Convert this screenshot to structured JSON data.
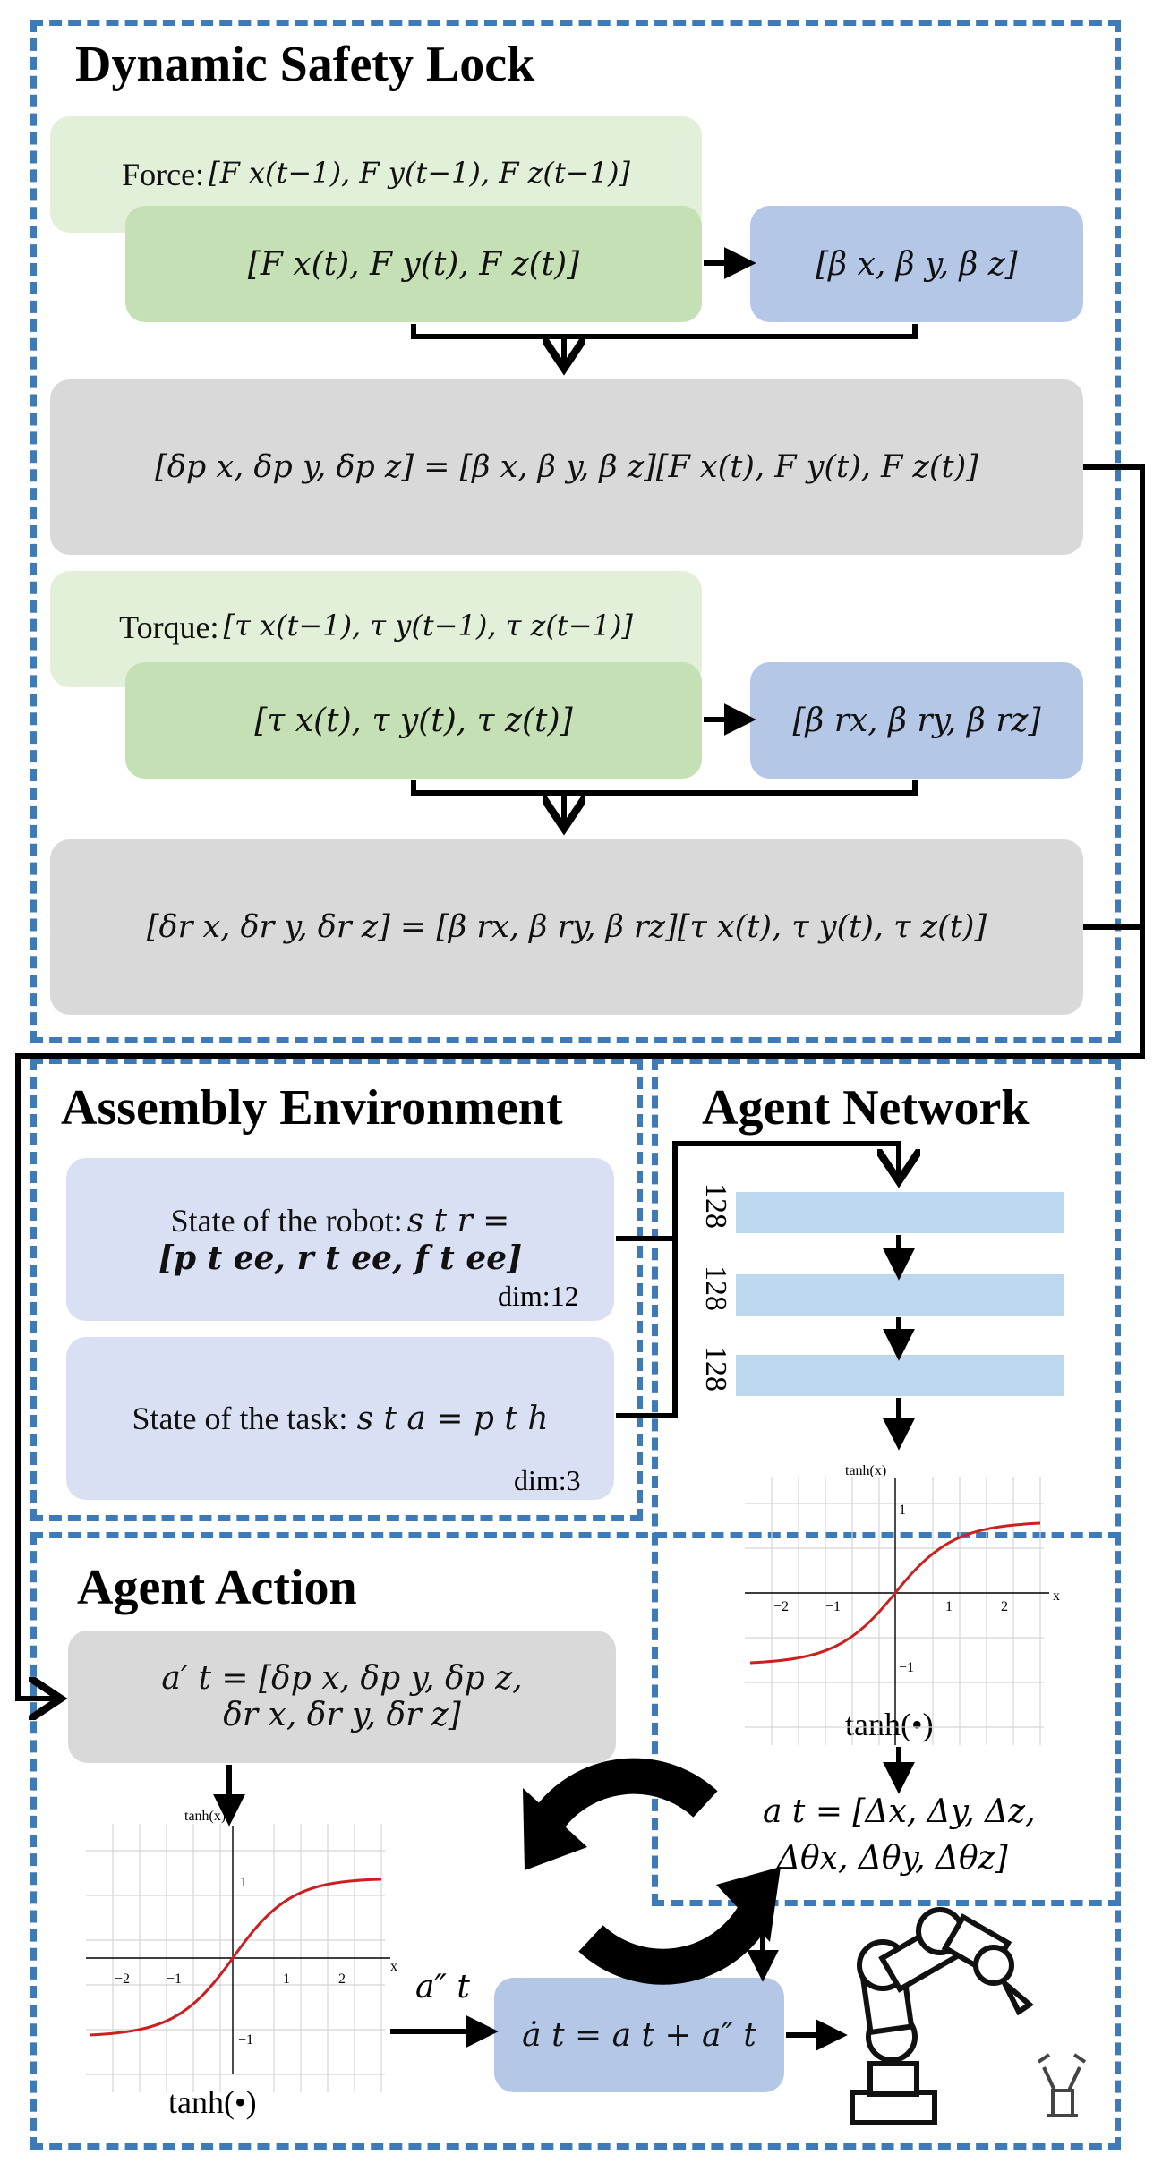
{
  "dynamic_safety_lock": {
    "title": "Dynamic Safety Lock",
    "force_prev": "Force: [F x(t−1), F y(t−1), F z(t−1)]",
    "force_prev_label": "Force:",
    "force_prev_vec": "[F x(t−1), F y(t−1), F z(t−1)]",
    "force_cur": "[F x(t), F y(t), F z(t)]",
    "beta": "[β x, β y, β z]",
    "dp_eq": "[δp x, δp y, δp z] = [β x, β y, β z][F x(t), F y(t), F z(t)]",
    "torque_prev_label": "Torque:",
    "torque_prev_vec": "[τ x(t−1), τ y(t−1), τ z(t−1)]",
    "torque_cur": "[τ x(t), τ y(t), τ z(t)]",
    "beta_r": "[β rx, β ry, β rz]",
    "dr_eq": "[δr x, δr y, δr z] = [β rx, β ry, β rz][τ x(t), τ y(t), τ z(t)]"
  },
  "assembly_environment": {
    "title": "Assembly Environment",
    "robot_state_label": "State of the robot:",
    "robot_state_eq1": "s t r =",
    "robot_state_eq2": "[p t ee, r t ee, f t ee]",
    "robot_dim": "dim:12",
    "task_state_label": "State of the task:",
    "task_state_eq": "s t a = p t h",
    "task_dim": "dim:3"
  },
  "agent_network": {
    "title": "Agent Network",
    "layers": [
      "128",
      "128",
      "128"
    ],
    "activation_label": "tanh(•)",
    "output_eq1": "a t = [Δx, Δy, Δz,",
    "output_eq2": "Δθx, Δθy, Δθz]"
  },
  "agent_action": {
    "title": "Agent Action",
    "action_eq1": "a′ t = [δp x, δp y, δp z,",
    "action_eq2": "δr x, δr y, δr z]",
    "activation_label": "tanh(•)",
    "a2_label": "a″ t",
    "final_eq": "ȧ t = a t + a″ t"
  },
  "tanh_plot": {
    "axis_title": "tanh(x)",
    "x_axis": "x",
    "x_ticks": [
      "−2",
      "−1",
      "1",
      "2"
    ],
    "y_ticks": [
      "1",
      "−1"
    ]
  },
  "colors": {
    "dash": "#3f7ab8",
    "green_light": "#e2efd9",
    "green": "#c5e0b4",
    "blue": "#b4c7e7",
    "gray": "#d9d9d9",
    "lavender": "#dae0f3",
    "layer": "#bdd7ee",
    "curve": "#cc1f1f"
  },
  "icons": [
    "refresh-cycle-icon",
    "robot-arm-icon",
    "gripper-icon"
  ]
}
